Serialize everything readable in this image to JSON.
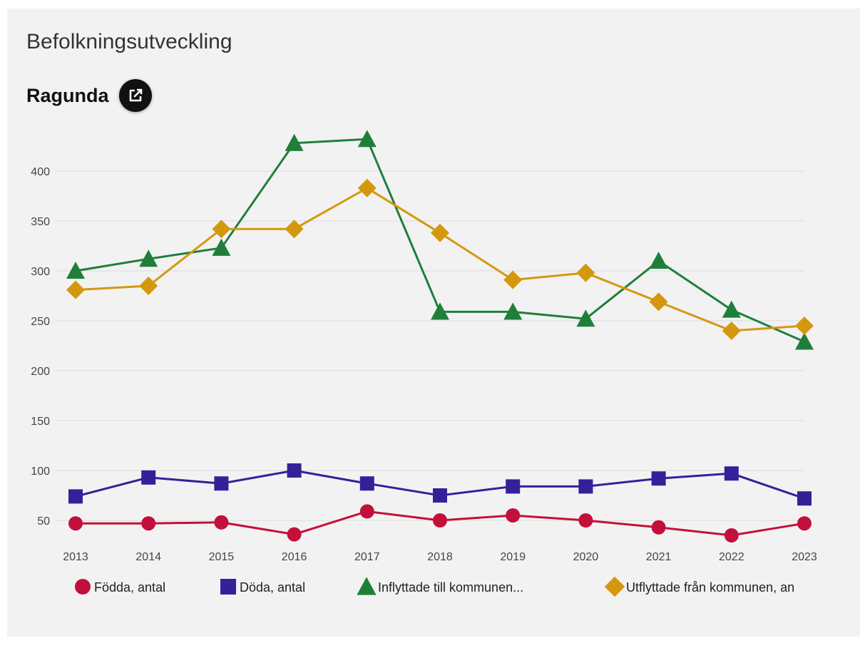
{
  "header": {
    "title": "Befolkningsutveckling",
    "region": "Ragunda",
    "external_link_icon": "external-link-icon"
  },
  "colors": {
    "fodda": "#c2103b",
    "doda": "#34219a",
    "inflyttade": "#1f7f3a",
    "utflyttade": "#d4980f",
    "grid": "#dcdcdc",
    "background": "#f2f2f2"
  },
  "chart_data": {
    "type": "line",
    "x": [
      2013,
      2014,
      2015,
      2016,
      2017,
      2018,
      2019,
      2020,
      2021,
      2022,
      2023
    ],
    "ylim": [
      25,
      450
    ],
    "yticks": [
      50,
      100,
      150,
      200,
      250,
      300,
      350,
      400
    ],
    "grid": true,
    "legend_position": "bottom",
    "series": [
      {
        "name": "Födda, antal",
        "marker": "circle",
        "color": "#c2103b",
        "values": [
          47,
          47,
          48,
          36,
          59,
          50,
          55,
          50,
          43,
          35,
          47
        ]
      },
      {
        "name": "Döda, antal",
        "marker": "square",
        "color": "#34219a",
        "values": [
          74,
          93,
          87,
          100,
          87,
          75,
          84,
          84,
          92,
          97,
          72
        ]
      },
      {
        "name": "Inflyttade till kommunen...",
        "marker": "triangle",
        "color": "#1f7f3a",
        "values": [
          300,
          312,
          323,
          428,
          432,
          259,
          259,
          252,
          310,
          261,
          229
        ]
      },
      {
        "name": "Utflyttade från kommunen, an",
        "marker": "diamond",
        "color": "#d4980f",
        "values": [
          281,
          285,
          342,
          342,
          383,
          338,
          291,
          298,
          269,
          240,
          245
        ]
      }
    ]
  }
}
